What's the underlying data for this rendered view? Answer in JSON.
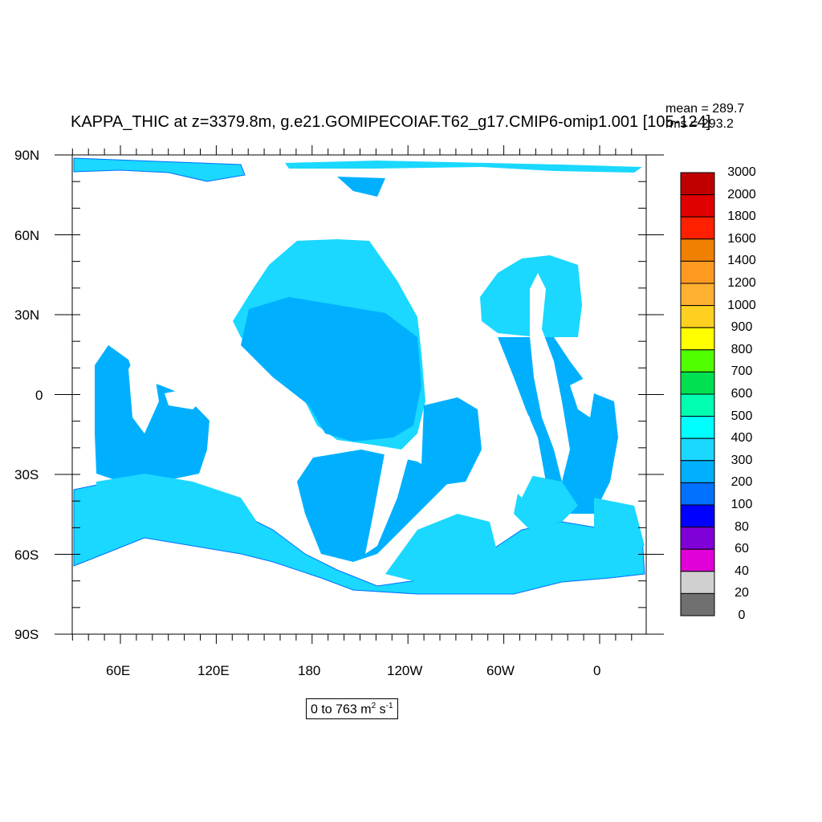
{
  "title": "KAPPA_THIC at z=3379.8m, g.e21.GOMIPECOIAF.T62_g17.CMIP6-omip1.001 [105-124]",
  "stats": {
    "mean": "mean = 289.7",
    "rms": "rms = 293.2"
  },
  "lat_labels": [
    "90N",
    "60N",
    "30N",
    "0",
    "30S",
    "60S",
    "90S"
  ],
  "lon_labels": [
    "60E",
    "120E",
    "180",
    "120W",
    "60W",
    "0"
  ],
  "colorbar": {
    "levels": [
      "3000",
      "2000",
      "1800",
      "1600",
      "1400",
      "1200",
      "1000",
      "900",
      "800",
      "700",
      "600",
      "500",
      "400",
      "300",
      "200",
      "100",
      "80",
      "60",
      "40",
      "20",
      "0"
    ],
    "colors": [
      "#c00000",
      "#e00000",
      "#ff2000",
      "#f08000",
      "#ff9a20",
      "#ffb030",
      "#ffd020",
      "#ffff00",
      "#50ff00",
      "#00e050",
      "#00ffb0",
      "#00ffff",
      "#1ad8ff",
      "#00b0ff",
      "#0070ff",
      "#0000ff",
      "#8000d8",
      "#e000d8",
      "#d0d0d0",
      "#707070"
    ]
  },
  "range": {
    "text": "0 to 763 m",
    "exp_2": "2",
    "unit_s": " s",
    "exp_neg1": "-1"
  },
  "map_colors": {
    "land": "#ffffff",
    "deep": "#00b0ff",
    "shallow": "#1ad8ff",
    "edge": "#0070ff"
  }
}
